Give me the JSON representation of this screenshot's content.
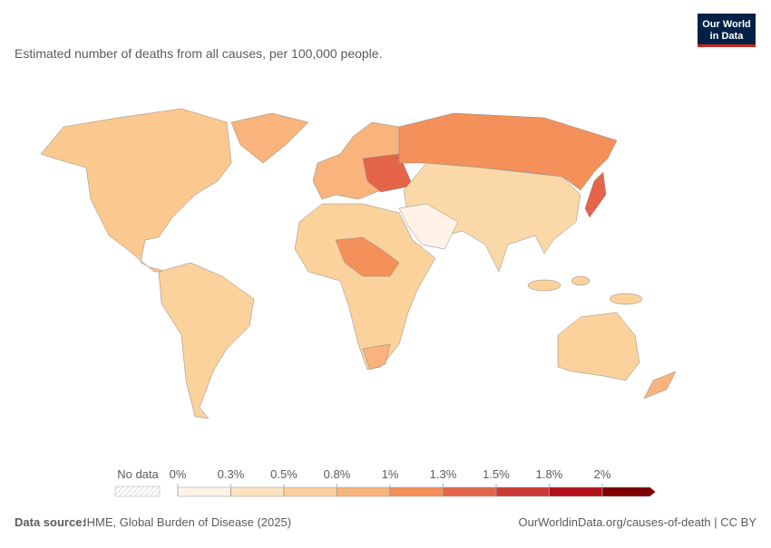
{
  "header": {
    "subtitle": "Estimated number of deaths from all causes, per 100,000 people.",
    "logo": [
      "Our World",
      "in Data"
    ]
  },
  "legend": {
    "no_data_label": "No data",
    "bins": [
      {
        "value": 0,
        "label": "0%"
      },
      {
        "value": 0.3,
        "label": "0.3%"
      },
      {
        "value": 0.5,
        "label": "0.5%"
      },
      {
        "value": 0.8,
        "label": "0.8%"
      },
      {
        "value": 1,
        "label": "1%"
      },
      {
        "value": 1.3,
        "label": "1.3%"
      },
      {
        "value": 1.5,
        "label": "1.5%"
      },
      {
        "value": 1.8,
        "label": "1.8%"
      },
      {
        "value": 2,
        "label": "2%"
      }
    ],
    "colors": [
      "#fef3e6",
      "#fde3c0",
      "#fbd19c",
      "#f8b47c",
      "#f4905a",
      "#e5654a",
      "#cc3a36",
      "#b3101a",
      "#7f0000"
    ]
  },
  "footer": {
    "source_label": "Data source:",
    "source": "IHME, Global Burden of Disease (2025)",
    "url": "OurWorldinData.org/causes-of-death | CC BY"
  }
}
